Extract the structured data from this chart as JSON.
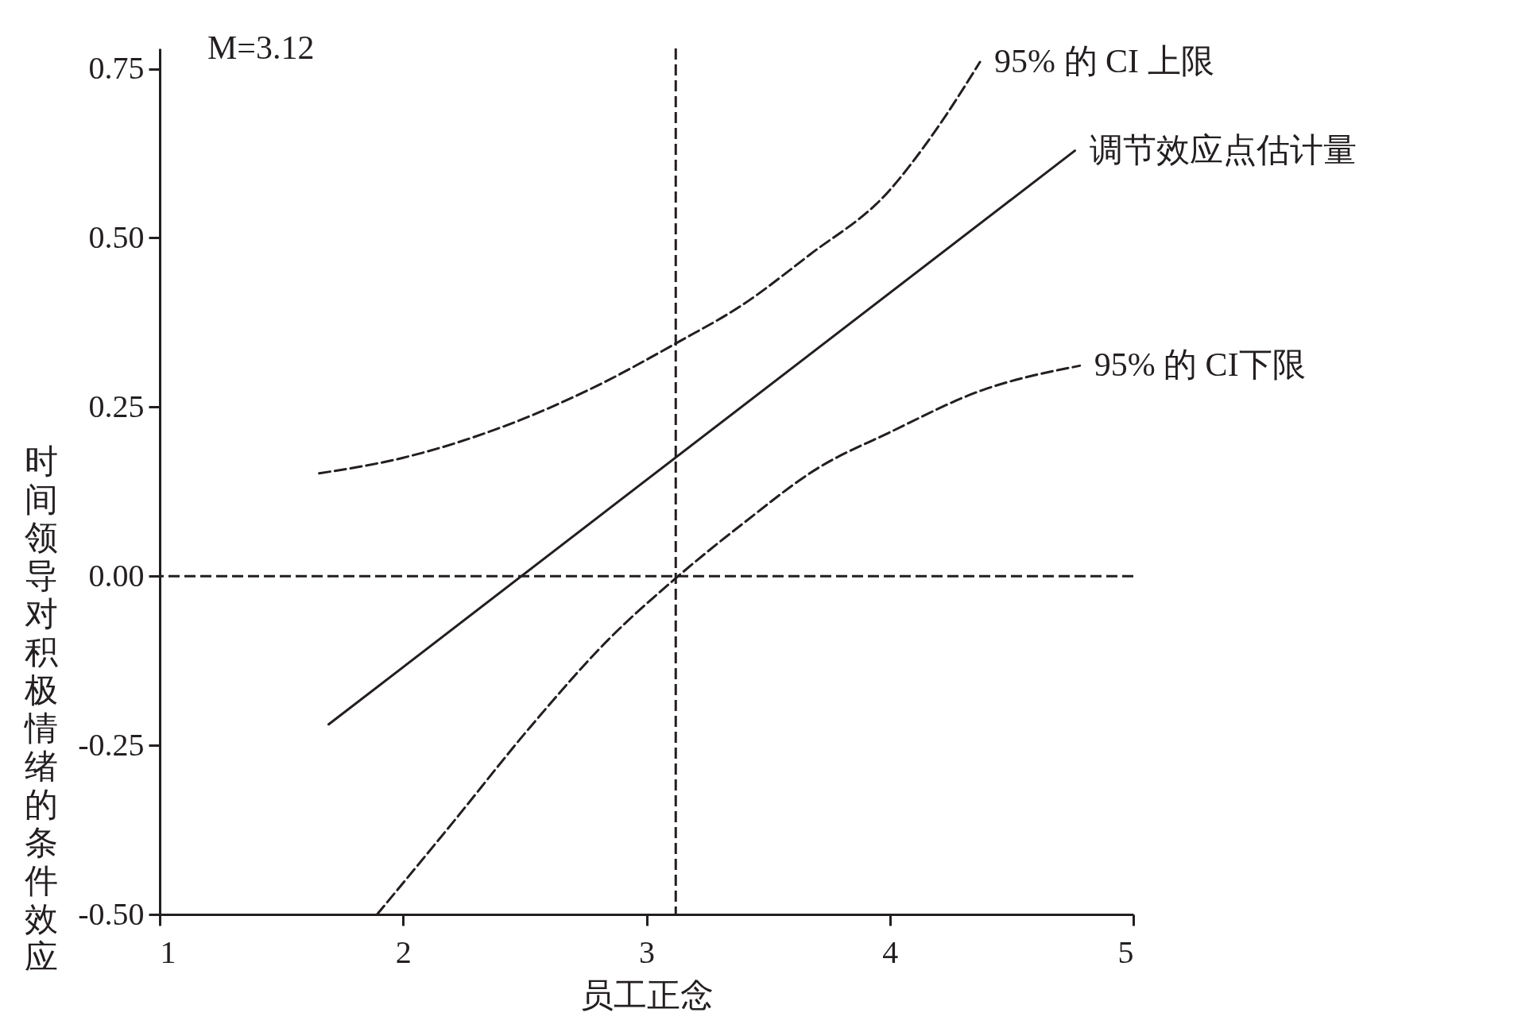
{
  "chart_data": {
    "type": "line",
    "xlabel": "员工正念",
    "ylabel": "时间领导对积极情绪的条件效应",
    "xlim": [
      1,
      5
    ],
    "xticks": [
      1,
      2,
      3,
      4,
      5
    ],
    "ylim": [
      -0.5,
      0.78
    ],
    "yticks": [
      {
        "value": -0.5,
        "label": "-0.50"
      },
      {
        "value": -0.25,
        "label": "-0.25"
      },
      {
        "value": 0,
        "label": "0.00"
      },
      {
        "value": 0.25,
        "label": "0.25"
      },
      {
        "value": 0.5,
        "label": "0.50"
      },
      {
        "value": 0.75,
        "label": "0.75"
      }
    ],
    "marker": "none",
    "series": [
      {
        "name": "95% 的 CI 上限",
        "color": "#231f20",
        "line_style": "dashed",
        "x": [
          1.655,
          2.0,
          2.44,
          2.8,
          3.13,
          3.39,
          3.67,
          3.99,
          4.19,
          4.37
        ],
        "values": [
          0.152,
          0.175,
          0.225,
          0.282,
          0.346,
          0.4,
          0.475,
          0.567,
          0.66,
          0.76
        ]
      },
      {
        "name": "调节效应点估计量",
        "color": "#231f20",
        "line_style": "solid",
        "x": [
          1.694,
          4.76
        ],
        "values": [
          -0.219,
          0.629
        ]
      },
      {
        "name": "95% 的 CI下限",
        "color": "#231f20",
        "line_style": "dashed",
        "x": [
          1.893,
          2.2,
          2.52,
          2.84,
          3.13,
          3.39,
          3.71,
          3.99,
          4.38,
          4.78
        ],
        "values": [
          -0.5,
          -0.366,
          -0.224,
          -0.095,
          0.0,
          0.076,
          0.161,
          0.211,
          0.275,
          0.311
        ]
      }
    ],
    "ref_lines": [
      {
        "axis": "y",
        "value": 0,
        "line_style": "dashed",
        "color": "#231f20"
      },
      {
        "axis": "x",
        "value": 3.12,
        "line_style": "dashed",
        "color": "#231f20"
      }
    ],
    "annotations": [
      "M=3.12"
    ]
  }
}
